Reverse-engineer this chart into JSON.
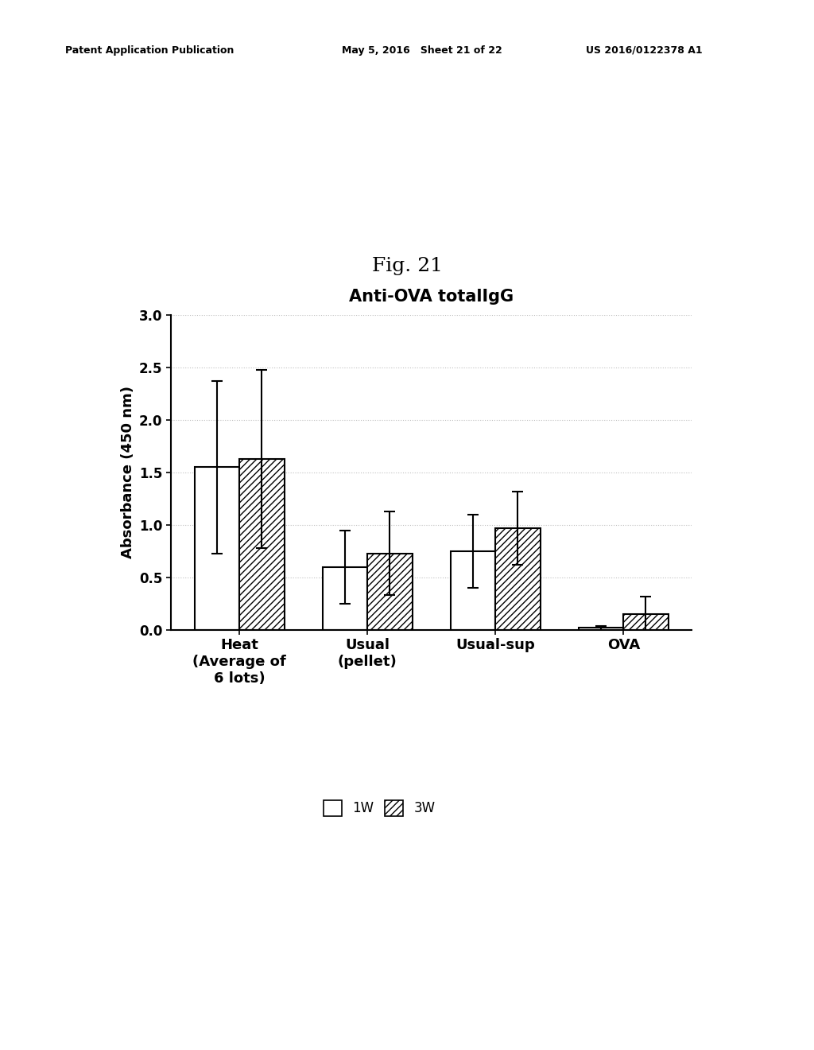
{
  "title": "Anti-OVA totalIgG",
  "fig_label": "Fig. 21",
  "ylabel": "Absorbance (450 nm)",
  "categories": [
    "Heat\n(Average of\n6 lots)",
    "Usual\n(pellet)",
    "Usual-sup",
    "OVA"
  ],
  "bar_values_1W": [
    1.55,
    0.6,
    0.75,
    0.02
  ],
  "bar_values_3W": [
    1.63,
    0.73,
    0.97,
    0.15
  ],
  "error_1W": [
    0.82,
    0.35,
    0.35,
    0.02
  ],
  "error_3W": [
    0.85,
    0.4,
    0.35,
    0.17
  ],
  "ylim": [
    0.0,
    3.0
  ],
  "yticks": [
    0.0,
    0.5,
    1.0,
    1.5,
    2.0,
    2.5,
    3.0
  ],
  "bar_width": 0.35,
  "color_1W": "#ffffff",
  "color_3W": "#ffffff",
  "hatch_1W": "",
  "hatch_3W": "////",
  "edgecolor": "#000000",
  "legend_labels": [
    "1W",
    "3W"
  ],
  "background_color": "#ffffff",
  "header_left": "Patent Application Publication",
  "header_mid": "May 5, 2016   Sheet 21 of 22",
  "header_right": "US 2016/0122378 A1",
  "title_fontsize": 15,
  "axis_fontsize": 13,
  "tick_fontsize": 12,
  "legend_fontsize": 12,
  "header_fontsize": 9,
  "fig_label_fontsize": 18
}
